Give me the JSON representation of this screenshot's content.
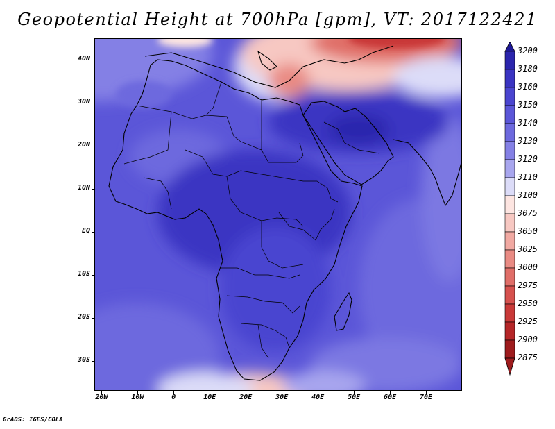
{
  "title": "Geopotential Height at 700hPa [gpm], VT: 2017122421",
  "footer": "GrADS: IGES/COLA",
  "map": {
    "lat_ticks": [
      {
        "lat": 40,
        "label": "40N"
      },
      {
        "lat": 30,
        "label": "30N"
      },
      {
        "lat": 20,
        "label": "20N"
      },
      {
        "lat": 10,
        "label": "10N"
      },
      {
        "lat": 0,
        "label": "EQ"
      },
      {
        "lat": -10,
        "label": "10S"
      },
      {
        "lat": -20,
        "label": "20S"
      },
      {
        "lat": -30,
        "label": "30S"
      }
    ],
    "lon_ticks": [
      {
        "lon": -20,
        "label": "20W"
      },
      {
        "lon": -10,
        "label": "10W"
      },
      {
        "lon": 0,
        "label": "0"
      },
      {
        "lon": 10,
        "label": "10E"
      },
      {
        "lon": 20,
        "label": "20E"
      },
      {
        "lon": 30,
        "label": "30E"
      },
      {
        "lon": 40,
        "label": "40E"
      },
      {
        "lon": 50,
        "label": "50E"
      },
      {
        "lon": 60,
        "label": "60E"
      },
      {
        "lon": 70,
        "label": "70E"
      }
    ],
    "lon_range": [
      -22,
      80
    ],
    "lat_range": [
      -37,
      45
    ]
  },
  "colorbar": {
    "levels": [
      "3200",
      "3180",
      "3160",
      "3150",
      "3140",
      "3130",
      "3120",
      "3110",
      "3100",
      "3075",
      "3050",
      "3025",
      "3000",
      "2975",
      "2950",
      "2925",
      "2900",
      "2875"
    ],
    "colors": [
      "#1e1896",
      "#2b25ad",
      "#3a34c2",
      "#4a45d0",
      "#5b56d8",
      "#6d69de",
      "#8480e5",
      "#a8a6ee",
      "#dcdcf8",
      "#fde5e1",
      "#f7c8c2",
      "#f1a9a2",
      "#e98b84",
      "#e06e68",
      "#d6514e",
      "#c93938",
      "#b52628",
      "#9e1b1d"
    ]
  }
}
